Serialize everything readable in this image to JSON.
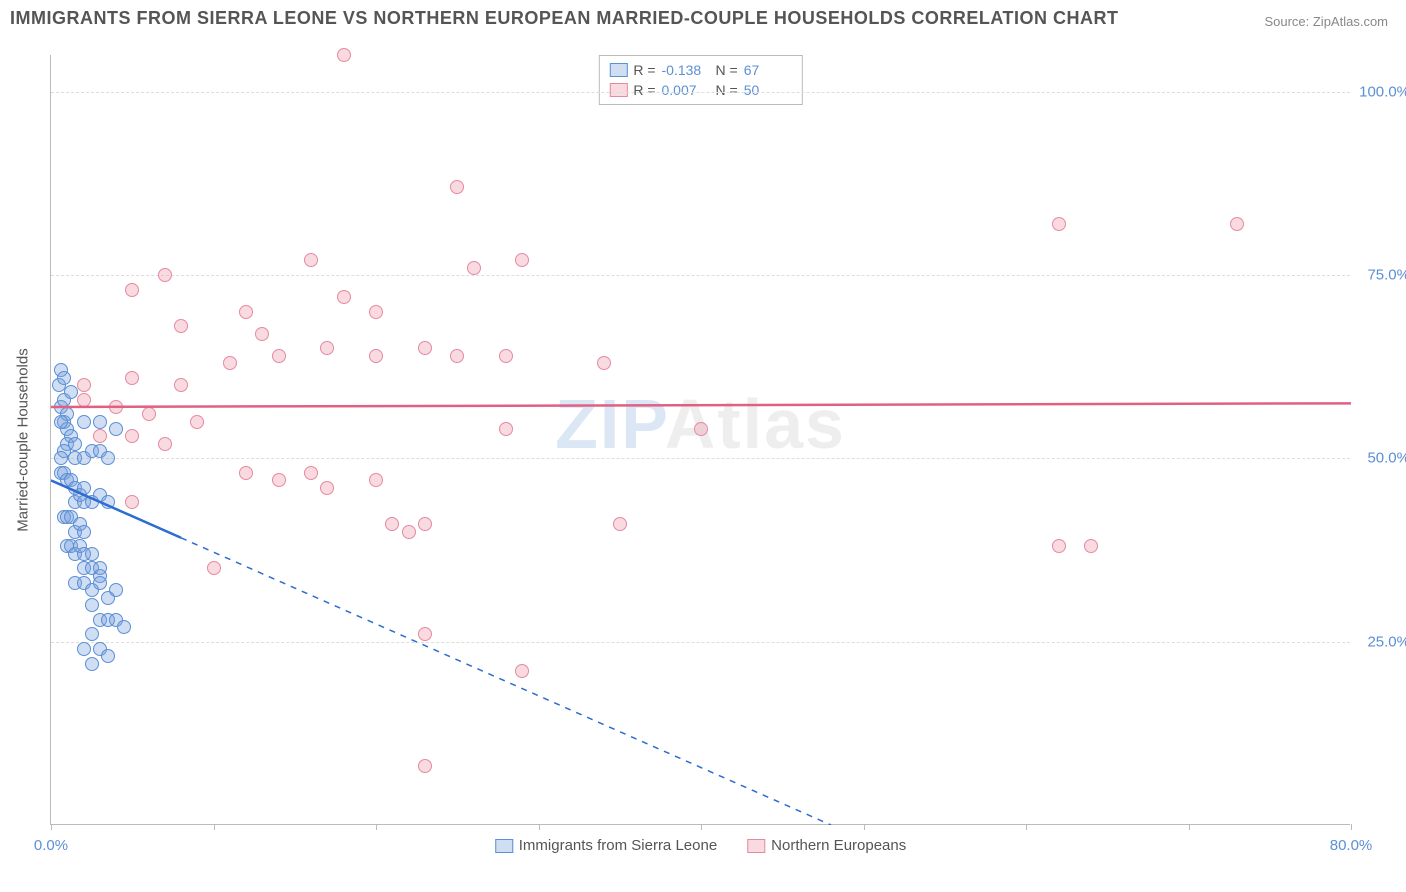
{
  "title": "IMMIGRANTS FROM SIERRA LEONE VS NORTHERN EUROPEAN MARRIED-COUPLE HOUSEHOLDS CORRELATION CHART",
  "source": "Source: ZipAtlas.com",
  "watermark": {
    "part1": "ZIP",
    "part2": "Atlas"
  },
  "chart": {
    "type": "scatter",
    "ylabel": "Married-couple Households",
    "xlim": [
      0,
      80
    ],
    "ylim": [
      0,
      105
    ],
    "xticks": [
      0,
      10,
      20,
      30,
      40,
      50,
      60,
      70,
      80
    ],
    "xtick_labels": {
      "0": "0.0%",
      "80": "80.0%"
    },
    "yticks": [
      25,
      50,
      75,
      100
    ],
    "ytick_labels": {
      "25": "25.0%",
      "50": "50.0%",
      "75": "75.0%",
      "100": "100.0%"
    },
    "background_color": "#ffffff",
    "grid_color": "#dddddd",
    "axis_color": "#bbbbbb",
    "tick_label_color": "#5b8fd6",
    "point_radius": 7,
    "series": [
      {
        "name": "Immigrants from Sierra Leone",
        "fill_color": "rgba(120,160,220,0.35)",
        "stroke_color": "#5b8fd6",
        "trend_color": "#2d6cd0",
        "R": "-0.138",
        "N": "67",
        "trend": {
          "x1": 0,
          "y1": 47,
          "x2": 48,
          "y2": 0,
          "solid_until_x": 8
        },
        "points": [
          [
            0.5,
            60
          ],
          [
            0.6,
            57
          ],
          [
            0.8,
            58
          ],
          [
            0.8,
            55
          ],
          [
            1.0,
            56
          ],
          [
            1.0,
            54
          ],
          [
            1.2,
            53
          ],
          [
            1.2,
            59
          ],
          [
            1.0,
            52
          ],
          [
            0.8,
            51
          ],
          [
            1.5,
            52
          ],
          [
            1.5,
            50
          ],
          [
            2.0,
            50
          ],
          [
            2.0,
            55
          ],
          [
            2.5,
            51
          ],
          [
            3.0,
            55
          ],
          [
            3.0,
            51
          ],
          [
            3.5,
            50
          ],
          [
            4.0,
            54
          ],
          [
            0.6,
            48
          ],
          [
            0.8,
            48
          ],
          [
            1.0,
            47
          ],
          [
            1.2,
            47
          ],
          [
            1.5,
            46
          ],
          [
            1.5,
            44
          ],
          [
            1.8,
            45
          ],
          [
            2.0,
            44
          ],
          [
            2.0,
            46
          ],
          [
            2.5,
            44
          ],
          [
            3.0,
            45
          ],
          [
            3.5,
            44
          ],
          [
            0.8,
            42
          ],
          [
            1.0,
            42
          ],
          [
            1.2,
            42
          ],
          [
            1.5,
            40
          ],
          [
            1.8,
            41
          ],
          [
            2.0,
            40
          ],
          [
            1.0,
            38
          ],
          [
            1.2,
            38
          ],
          [
            1.5,
            37
          ],
          [
            1.8,
            38
          ],
          [
            2.0,
            37
          ],
          [
            2.5,
            37
          ],
          [
            2.0,
            35
          ],
          [
            2.5,
            35
          ],
          [
            3.0,
            34
          ],
          [
            3.0,
            35
          ],
          [
            1.5,
            33
          ],
          [
            2.0,
            33
          ],
          [
            2.5,
            32
          ],
          [
            3.0,
            33
          ],
          [
            2.5,
            30
          ],
          [
            3.5,
            31
          ],
          [
            4.0,
            32
          ],
          [
            3.0,
            28
          ],
          [
            3.5,
            28
          ],
          [
            4.0,
            28
          ],
          [
            2.5,
            26
          ],
          [
            4.5,
            27
          ],
          [
            2.0,
            24
          ],
          [
            3.0,
            24
          ],
          [
            2.5,
            22
          ],
          [
            3.5,
            23
          ],
          [
            0.6,
            62
          ],
          [
            0.8,
            61
          ],
          [
            0.6,
            55
          ],
          [
            0.6,
            50
          ]
        ]
      },
      {
        "name": "Northern Europeans",
        "fill_color": "rgba(240,150,170,0.35)",
        "stroke_color": "#e48aa0",
        "trend_color": "#e06084",
        "R": "0.007",
        "N": "50",
        "trend": {
          "x1": 0,
          "y1": 57,
          "x2": 80,
          "y2": 57.5,
          "solid_until_x": 80
        },
        "points": [
          [
            18,
            105
          ],
          [
            25,
            87
          ],
          [
            26,
            76
          ],
          [
            29,
            77
          ],
          [
            16,
            77
          ],
          [
            7,
            75
          ],
          [
            5,
            73
          ],
          [
            12,
            70
          ],
          [
            18,
            72
          ],
          [
            8,
            68
          ],
          [
            13,
            67
          ],
          [
            17,
            65
          ],
          [
            20,
            64
          ],
          [
            20,
            70
          ],
          [
            11,
            63
          ],
          [
            14,
            64
          ],
          [
            23,
            65
          ],
          [
            25,
            64
          ],
          [
            28,
            64
          ],
          [
            34,
            63
          ],
          [
            2,
            60
          ],
          [
            5,
            61
          ],
          [
            8,
            60
          ],
          [
            2,
            58
          ],
          [
            4,
            57
          ],
          [
            6,
            56
          ],
          [
            9,
            55
          ],
          [
            3,
            53
          ],
          [
            5,
            53
          ],
          [
            7,
            52
          ],
          [
            28,
            54
          ],
          [
            12,
            48
          ],
          [
            14,
            47
          ],
          [
            16,
            48
          ],
          [
            17,
            46
          ],
          [
            20,
            47
          ],
          [
            5,
            44
          ],
          [
            21,
            41
          ],
          [
            22,
            40
          ],
          [
            23,
            41
          ],
          [
            35,
            41
          ],
          [
            64,
            38
          ],
          [
            23,
            26
          ],
          [
            29,
            21
          ],
          [
            23,
            8
          ],
          [
            40,
            54
          ],
          [
            73,
            82
          ],
          [
            62,
            82
          ],
          [
            62,
            38
          ],
          [
            10,
            35
          ]
        ]
      }
    ],
    "legend": {
      "r_label": "R =",
      "n_label": "N ="
    },
    "bottom_legend": {
      "items": [
        "Immigrants from Sierra Leone",
        "Northern Europeans"
      ]
    }
  }
}
